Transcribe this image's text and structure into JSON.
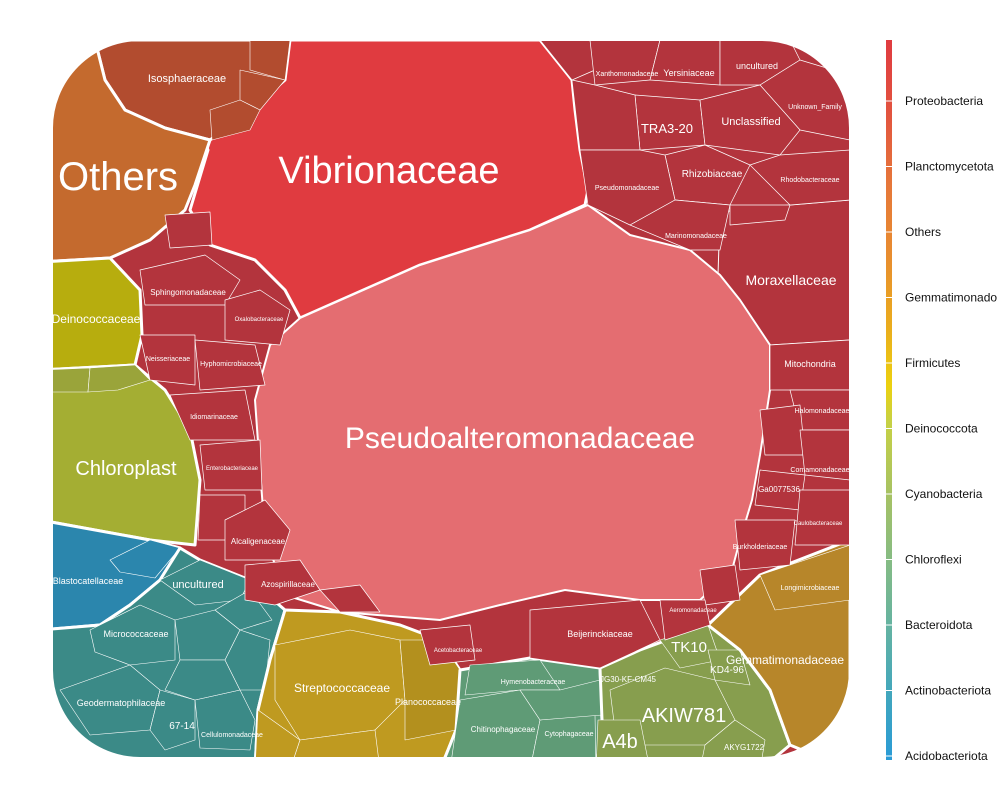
{
  "chart_data": {
    "type": "treemap",
    "style": "voronoi",
    "legend_position": "right",
    "legend": [
      "Proteobacteria",
      "Planctomycetota",
      "Others",
      "Gemmatimonado",
      "Firmicutes",
      "Deinococcota",
      "Cyanobacteria",
      "Chloroflexi",
      "Bacteroidota",
      "Actinobacteriota",
      "Acidobacteriota"
    ],
    "phyla": {
      "Proteobacteria": {
        "color": "#b3343d"
      },
      "Planctomycetota": {
        "color": "#b24c2f"
      },
      "Others": {
        "color": "#c46a2e"
      },
      "Gemmatimonadota": {
        "color": "#b7862a"
      },
      "Firmicutes": {
        "color": "#bf9a20"
      },
      "Deinococcota": {
        "color": "#b7ad0e"
      },
      "Cyanobacteria": {
        "color": "#a4ae33"
      },
      "Chloroflexi": {
        "color": "#879e4e"
      },
      "Bacteroidota": {
        "color": "#5f9b76"
      },
      "Actinobacteriota": {
        "color": "#3b8a87"
      },
      "Acidobacteriota": {
        "color": "#2b86ad"
      }
    },
    "cells": [
      {
        "label": "Pseudoalteromonadaceae",
        "phylum": "Proteobacteria",
        "color": "#e46d71"
      },
      {
        "label": "Vibrionaceae",
        "phylum": "Proteobacteria",
        "color": "#e03b40"
      },
      {
        "label": "Others",
        "phylum": "Others"
      },
      {
        "label": "Isosphaeraceae",
        "phylum": "Planctomycetota"
      },
      {
        "label": "Chloroplast",
        "phylum": "Cyanobacteria"
      },
      {
        "label": "Deinococcaceae",
        "phylum": "Deinococcota"
      },
      {
        "label": "Streptococcaceae",
        "phylum": "Firmicutes"
      },
      {
        "label": "Planococcaceae",
        "phylum": "Firmicutes"
      },
      {
        "label": "Gemmatimonadaceae",
        "phylum": "Gemmatimonadota"
      },
      {
        "label": "Longimicrobiaceae",
        "phylum": "Gemmatimonadota"
      },
      {
        "label": "AKIW781",
        "phylum": "Chloroflexi"
      },
      {
        "label": "A4b",
        "phylum": "Chloroflexi"
      },
      {
        "label": "TK10",
        "phylum": "Chloroflexi"
      },
      {
        "label": "KD4-96",
        "phylum": "Chloroflexi"
      },
      {
        "label": "JG30-KF-CM45",
        "phylum": "Chloroflexi"
      },
      {
        "label": "AKYG1722",
        "phylum": "Chloroflexi"
      },
      {
        "label": "Chitinophagaceae",
        "phylum": "Bacteroidota"
      },
      {
        "label": "Hymenobacteraceae",
        "phylum": "Bacteroidota"
      },
      {
        "label": "Cytophagaceae",
        "phylum": "Bacteroidota"
      },
      {
        "label": "Micrococcaceae",
        "phylum": "Actinobacteriota"
      },
      {
        "label": "Geodermatophilaceae",
        "phylum": "Actinobacteriota"
      },
      {
        "label": "uncultured",
        "phylum": "Actinobacteriota"
      },
      {
        "label": "67-14",
        "phylum": "Actinobacteriota"
      },
      {
        "label": "Cellulomonadaceae",
        "phylum": "Actinobacteriota"
      },
      {
        "label": "Blastocatellaceae",
        "phylum": "Acidobacteriota"
      },
      {
        "label": "Moraxellaceae",
        "phylum": "Proteobacteria"
      },
      {
        "label": "Xanthomonadaceae",
        "phylum": "Proteobacteria"
      },
      {
        "label": "Yersiniaceae",
        "phylum": "Proteobacteria"
      },
      {
        "label": "uncultured",
        "phylum": "Proteobacteria"
      },
      {
        "label": "TRA3-20",
        "phylum": "Proteobacteria"
      },
      {
        "label": "Unclassified",
        "phylum": "Proteobacteria"
      },
      {
        "label": "Unknown_Family",
        "phylum": "Proteobacteria"
      },
      {
        "label": "Rhizobiaceae",
        "phylum": "Proteobacteria"
      },
      {
        "label": "Rhodobacteraceae",
        "phylum": "Proteobacteria"
      },
      {
        "label": "Pseudomonadaceae",
        "phylum": "Proteobacteria"
      },
      {
        "label": "Marinomonadaceae",
        "phylum": "Proteobacteria"
      },
      {
        "label": "Mitochondria",
        "phylum": "Proteobacteria"
      },
      {
        "label": "Halomonadaceae",
        "phylum": "Proteobacteria"
      },
      {
        "label": "Comamonadaceae",
        "phylum": "Proteobacteria"
      },
      {
        "label": "Ga0077536",
        "phylum": "Proteobacteria"
      },
      {
        "label": "Caulobacteraceae",
        "phylum": "Proteobacteria"
      },
      {
        "label": "Burkholderiaceae",
        "phylum": "Proteobacteria"
      },
      {
        "label": "Beijerinckiaceae",
        "phylum": "Proteobacteria"
      },
      {
        "label": "Aeromonadaceae",
        "phylum": "Proteobacteria"
      },
      {
        "label": "Acetobacteraceae",
        "phylum": "Proteobacteria"
      },
      {
        "label": "Sphingomonadaceae",
        "phylum": "Proteobacteria"
      },
      {
        "label": "Neisseriaceae",
        "phylum": "Proteobacteria"
      },
      {
        "label": "Hyphomicrobiaceae",
        "phylum": "Proteobacteria"
      },
      {
        "label": "Idiomarinaceae",
        "phylum": "Proteobacteria"
      },
      {
        "label": "Enterobacteriaceae",
        "phylum": "Proteobacteria"
      },
      {
        "label": "Alcaligenaceae",
        "phylum": "Proteobacteria"
      },
      {
        "label": "Azospirillaceae",
        "phylum": "Proteobacteria"
      },
      {
        "label": "Oxalobacteraceae",
        "phylum": "Proteobacteria"
      },
      {
        "label": "Methylobacteriaceae",
        "phylum": "Proteobacteria"
      },
      {
        "label": "Sneathiellaceae",
        "phylum": "Proteobacteria"
      },
      {
        "label": "Rhodocyclaceae",
        "phylum": "Proteobacteria"
      },
      {
        "label": "Xanthobacteraceae",
        "phylum": "Proteobacteria"
      },
      {
        "label": "Gemmataceae",
        "phylum": "Planctomycetota"
      }
    ]
  }
}
